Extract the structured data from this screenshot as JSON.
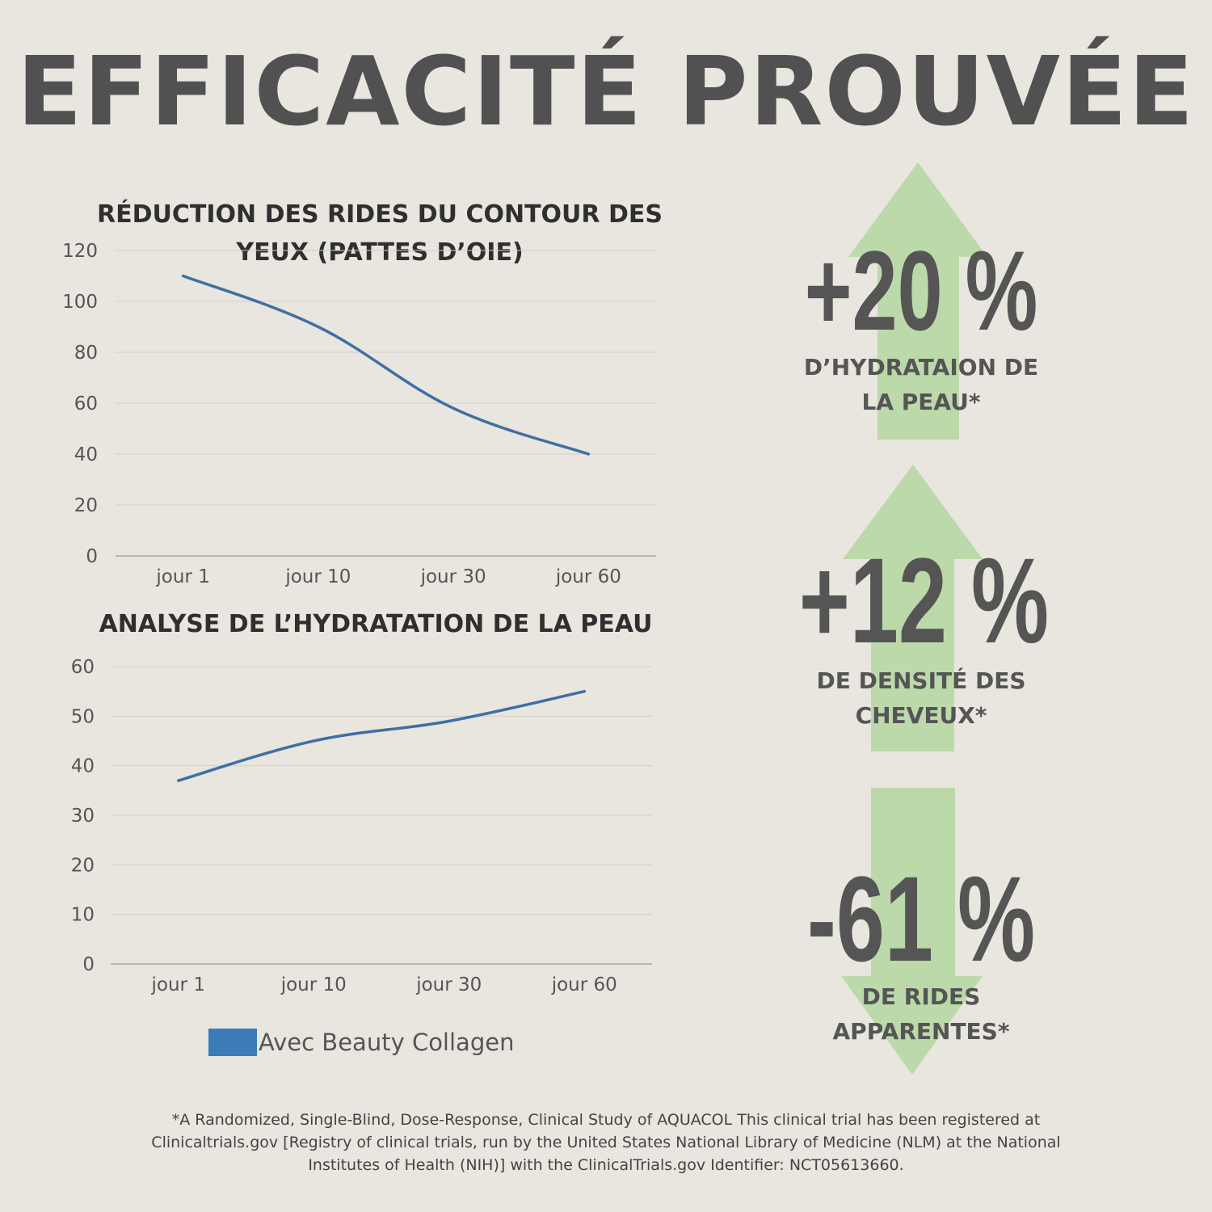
{
  "title": "EFFICACITÉ  PROUVÉE",
  "colors": {
    "background": "#e9e5df",
    "line": "#3f6fa4",
    "arrow": "#bcd9aa",
    "text": "#515151",
    "legend": "#3a7bb8"
  },
  "chart_data": [
    {
      "type": "line",
      "title": "RÉDUCTION DES RIDES DU CONTOUR DES YEUX (PATTES D’OIE)",
      "categories": [
        "jour 1",
        "jour 10",
        "jour 30",
        "jour 60"
      ],
      "series": [
        {
          "name": "Avec Beauty Collagen",
          "values": [
            110,
            90,
            58,
            40
          ]
        }
      ],
      "ylim": [
        0,
        120
      ],
      "yticks": [
        "0",
        "20",
        "40",
        "60",
        "80",
        "100",
        "120"
      ],
      "grid": true
    },
    {
      "type": "line",
      "title": "ANALYSE DE L’HYDRATATION DE LA PEAU",
      "categories": [
        "jour 1",
        "jour 10",
        "jour 30",
        "jour 60"
      ],
      "series": [
        {
          "name": "Avec Beauty Collagen",
          "values": [
            37,
            45,
            49,
            55
          ]
        }
      ],
      "ylim": [
        0,
        60
      ],
      "yticks": [
        "0",
        "10",
        "20",
        "30",
        "40",
        "50",
        "60"
      ],
      "grid": true,
      "legend": "bottom"
    }
  ],
  "legend_label": "Avec Beauty Collagen",
  "stats": [
    {
      "value": "+20 %",
      "caption_line1": "D’HYDRATAION DE",
      "caption_line2": "LA PEAU*",
      "arrow": "up"
    },
    {
      "value": "+12 %",
      "caption_line1": "DE DENSITÉ DES",
      "caption_line2": "CHEVEUX*",
      "arrow": "up"
    },
    {
      "value": "-61 %",
      "caption_line1": "DE RIDES",
      "caption_line2": "APPARENTES*",
      "arrow": "down"
    }
  ],
  "footnote": {
    "line1": "*A Randomized, Single-Blind, Dose-Response, Clinical Study of AQUACOL This clinical trial has been registered at",
    "line2": "Clinicaltrials.gov [Registry of clinical trials, run by the United States National Library of Medicine (NLM) at the National",
    "line3": "Institutes of Health (NIH)] with the ClinicalTrials.gov Identifier: NCT05613660."
  }
}
